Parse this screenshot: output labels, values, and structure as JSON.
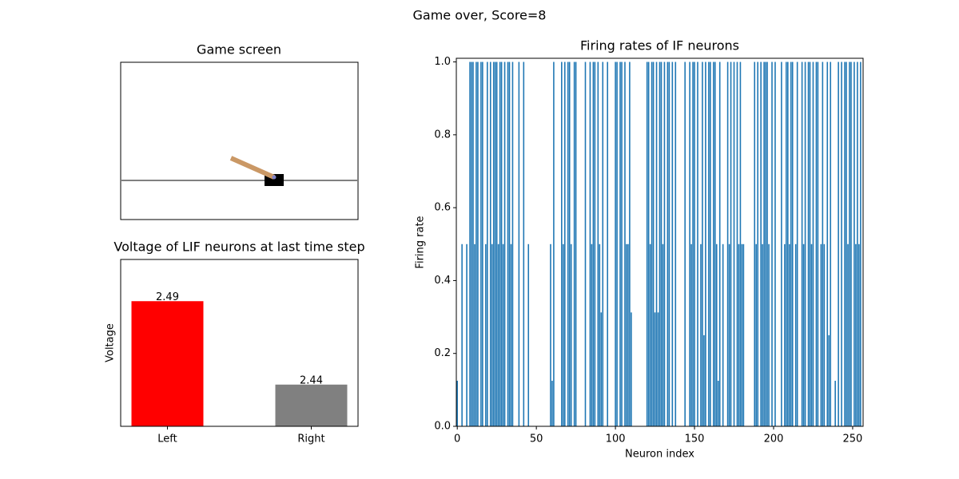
{
  "title": "Game over, Score=8",
  "chart_data": [
    {
      "type": "image",
      "title": "Game screen"
    },
    {
      "type": "bar",
      "title": "Voltage of LIF neurons at last time step",
      "ylabel": "Voltage",
      "categories": [
        "Left",
        "Right"
      ],
      "values": [
        2.49,
        2.44
      ],
      "colors": [
        "#ff0000",
        "#808080"
      ],
      "ylim": [
        2.415,
        2.515
      ]
    },
    {
      "type": "bar",
      "title": "Firing rates of IF neurons",
      "xlabel": "Neuron index",
      "ylabel": "Firing rate",
      "color": "#1f77b4",
      "x": [
        0,
        1,
        2,
        3,
        4,
        5,
        6,
        7,
        8,
        9,
        10,
        11,
        12,
        13,
        14,
        15,
        16,
        17,
        18,
        19,
        20,
        21,
        22,
        23,
        24,
        25,
        26,
        27,
        28,
        29,
        30,
        31,
        32,
        33,
        34,
        35,
        36,
        37,
        38,
        39,
        40,
        41,
        42,
        43,
        44,
        45,
        46,
        47,
        48,
        49,
        50,
        51,
        52,
        53,
        54,
        55,
        56,
        57,
        58,
        59,
        60,
        61,
        62,
        63,
        64,
        65,
        66,
        67,
        68,
        69,
        70,
        71,
        72,
        73,
        74,
        75,
        76,
        77,
        78,
        79,
        80,
        81,
        82,
        83,
        84,
        85,
        86,
        87,
        88,
        89,
        90,
        91,
        92,
        93,
        94,
        95,
        96,
        97,
        98,
        99,
        100,
        101,
        102,
        103,
        104,
        105,
        106,
        107,
        108,
        109,
        110,
        111,
        112,
        113,
        114,
        115,
        116,
        117,
        118,
        119,
        120,
        121,
        122,
        123,
        124,
        125,
        126,
        127,
        128,
        129,
        130,
        131,
        132,
        133,
        134,
        135,
        136,
        137,
        138,
        139,
        140,
        141,
        142,
        143,
        144,
        145,
        146,
        147,
        148,
        149,
        150,
        151,
        152,
        153,
        154,
        155,
        156,
        157,
        158,
        159,
        160,
        161,
        162,
        163,
        164,
        165,
        166,
        167,
        168,
        169,
        170,
        171,
        172,
        173,
        174,
        175,
        176,
        177,
        178,
        179,
        180,
        181,
        182,
        183,
        184,
        185,
        186,
        187,
        188,
        189,
        190,
        191,
        192,
        193,
        194,
        195,
        196,
        197,
        198,
        199,
        200,
        201,
        202,
        203,
        204,
        205,
        206,
        207,
        208,
        209,
        210,
        211,
        212,
        213,
        214,
        215,
        216,
        217,
        218,
        219,
        220,
        221,
        222,
        223,
        224,
        225,
        226,
        227,
        228,
        229,
        230,
        231,
        232,
        233,
        234,
        235,
        236,
        237,
        238,
        239,
        240,
        241,
        242,
        243,
        244,
        245,
        246,
        247,
        248,
        249,
        250,
        251,
        252,
        253,
        254,
        255
      ],
      "values": [
        0.125,
        0,
        0,
        0.5,
        0,
        0,
        0.5,
        0,
        1,
        1,
        1,
        0.5,
        1,
        1,
        0,
        1,
        1,
        0,
        0.5,
        1,
        0,
        1,
        0.5,
        1,
        1,
        1,
        0.5,
        1,
        1,
        0.5,
        1,
        0,
        1,
        1,
        0.5,
        1,
        0,
        0,
        0,
        1,
        0,
        0,
        1,
        0,
        0,
        0.5,
        0,
        0,
        0,
        0,
        0,
        0,
        0,
        0,
        0,
        0,
        0,
        0,
        0,
        0.5,
        0.125,
        1,
        0,
        0,
        0,
        0,
        1,
        0.5,
        1,
        0,
        1,
        1,
        0.5,
        0,
        1,
        1,
        0,
        0,
        0,
        0,
        0,
        1,
        0,
        0,
        1,
        0.5,
        1,
        1,
        0,
        1,
        0.5,
        0.3125,
        1,
        0,
        0,
        1,
        0,
        0,
        0,
        0,
        1,
        1,
        0,
        1,
        1,
        0,
        1,
        0.5,
        0.5,
        1,
        0.3125,
        0,
        0,
        0,
        0,
        0,
        0,
        0,
        0,
        0,
        1,
        1,
        0.5,
        1,
        1,
        0.3125,
        1,
        0.3125,
        1,
        1,
        0.5,
        1,
        0,
        1,
        1,
        0,
        1,
        0,
        1,
        0,
        0,
        0,
        0,
        0,
        1,
        0,
        0,
        1,
        0.5,
        1,
        1,
        0,
        1,
        0,
        0.5,
        1,
        0.25,
        1,
        0,
        1,
        1,
        0,
        1,
        1,
        0.5,
        0.125,
        1,
        0,
        0.5,
        0,
        0,
        1,
        0.5,
        1,
        0,
        1,
        0,
        1,
        0.5,
        1,
        0.5,
        0.5,
        0,
        0,
        0,
        0,
        0,
        0,
        1,
        0.5,
        1,
        0,
        1,
        0.5,
        1,
        1,
        1,
        0.5,
        0,
        1,
        0,
        1,
        0,
        0,
        0,
        1,
        0,
        0.5,
        1,
        1,
        0.5,
        1,
        1,
        0,
        0.5,
        1,
        0,
        0,
        1,
        0.5,
        1,
        0,
        1,
        1,
        0.5,
        1,
        0,
        1,
        1,
        0,
        0.5,
        1,
        0.5,
        0,
        1,
        0.25,
        1,
        0,
        0,
        0.125,
        0,
        1,
        0,
        1,
        0,
        1,
        1,
        0.5,
        1,
        1,
        0,
        1,
        0.5,
        1,
        0.5,
        1
      ],
      "xlim": [
        -0.6,
        256.6
      ],
      "xticks": [
        0,
        50,
        100,
        150,
        200,
        250
      ],
      "ylim": [
        0,
        1.01
      ],
      "yticks": [
        {
          "value": 0,
          "label": "0.0"
        },
        0.2,
        0.4,
        0.6,
        0.8,
        {
          "value": 1,
          "label": "1.0"
        }
      ]
    }
  ]
}
